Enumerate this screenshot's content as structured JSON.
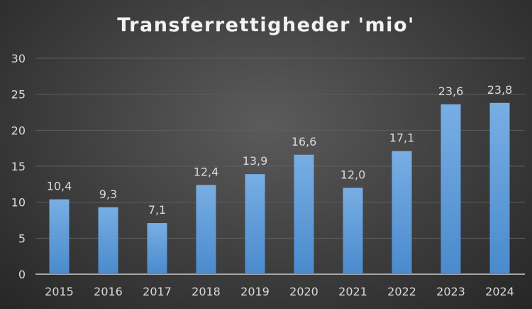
{
  "chart_data": {
    "type": "bar",
    "title": "Transferrettigheder 'mio'",
    "categories": [
      "2015",
      "2016",
      "2017",
      "2018",
      "2019",
      "2020",
      "2021",
      "2022",
      "2023",
      "2024"
    ],
    "values": [
      10.4,
      9.3,
      7.1,
      12.4,
      13.9,
      16.6,
      12.0,
      17.1,
      23.6,
      23.8
    ],
    "data_labels": [
      "10,4",
      "9,3",
      "7,1",
      "12,4",
      "13,9",
      "16,6",
      "12,0",
      "17,1",
      "23,6",
      "23,8"
    ],
    "xlabel": "",
    "ylabel": "",
    "ylim": [
      0,
      30
    ],
    "yticks": [
      "0",
      "5",
      "10",
      "15",
      "20",
      "25",
      "30"
    ],
    "grid": true,
    "legend": "none",
    "colors": {
      "bar_top": "#78aee3",
      "bar_bottom": "#4a8acd",
      "grid": "#5e5e5e",
      "axis": "#a6a6a6",
      "text": "#d9d9d9"
    }
  }
}
